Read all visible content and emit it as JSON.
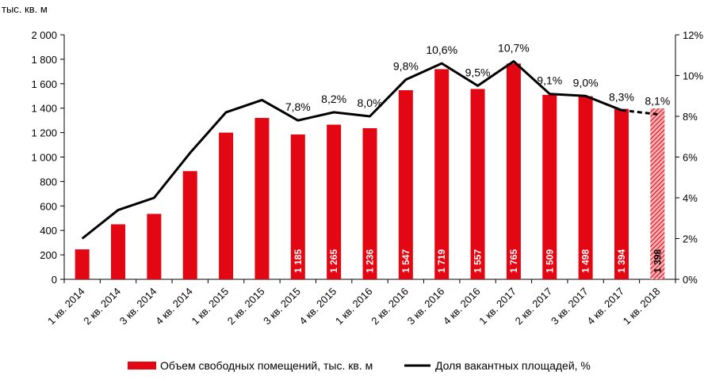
{
  "chart_data": {
    "type": "bar+line",
    "y_unit_label": "тыс. кв. м",
    "categories": [
      "1 кв. 2014",
      "2 кв. 2014",
      "3 кв. 2014",
      "4 кв. 2014",
      "1 кв. 2015",
      "2 кв. 2015",
      "3 кв. 2015",
      "4 кв. 2015",
      "1 кв. 2016",
      "2 кв. 2016",
      "3 кв. 2016",
      "4 кв. 2016",
      "1 кв. 2017",
      "2 кв. 2017",
      "3 кв. 2017",
      "4 кв. 2017",
      "1 кв. 2018"
    ],
    "bar_series": {
      "name": "Объем свободных помещений,  тыс. кв. м",
      "values": [
        245,
        450,
        535,
        885,
        1200,
        1320,
        1185,
        1265,
        1236,
        1547,
        1719,
        1557,
        1765,
        1509,
        1498,
        1394,
        1398
      ],
      "labels": [
        "",
        "",
        "",
        "",
        "",
        "",
        "1 185",
        "1 265",
        "1 236",
        "1 547",
        "1 719",
        "1 557",
        "1 765",
        "1 509",
        "1 498",
        "1 394",
        "1 398"
      ],
      "forecast_last": true,
      "color": "#e30613"
    },
    "line_series": {
      "name": "Доля вакантных площадей,  %",
      "values": [
        2.0,
        3.4,
        4.0,
        6.2,
        8.2,
        8.8,
        7.8,
        8.2,
        8.0,
        9.8,
        10.6,
        9.5,
        10.7,
        9.1,
        9.0,
        8.3,
        8.1
      ],
      "labels": [
        "",
        "",
        "",
        "",
        "",
        "",
        "7,8%",
        "8,2%",
        "8,0%",
        "9,8%",
        "10,6%",
        "9,5%",
        "10,7%",
        "9,1%",
        "9,0%",
        "8,3%",
        "8,1%"
      ],
      "dashed_last_segment": true,
      "color": "#000000"
    },
    "y_left": {
      "min": 0,
      "max": 2000,
      "step": 200,
      "tick_labels": [
        "0",
        "200",
        "400",
        "600",
        "800",
        "1 000",
        "1 200",
        "1 400",
        "1 600",
        "1 800",
        "2 000"
      ]
    },
    "y_right": {
      "min": 0,
      "max": 12,
      "step": 2,
      "tick_labels": [
        "0%",
        "2%",
        "4%",
        "6%",
        "8%",
        "10%",
        "12%"
      ]
    },
    "legend_position": "bottom-center"
  }
}
